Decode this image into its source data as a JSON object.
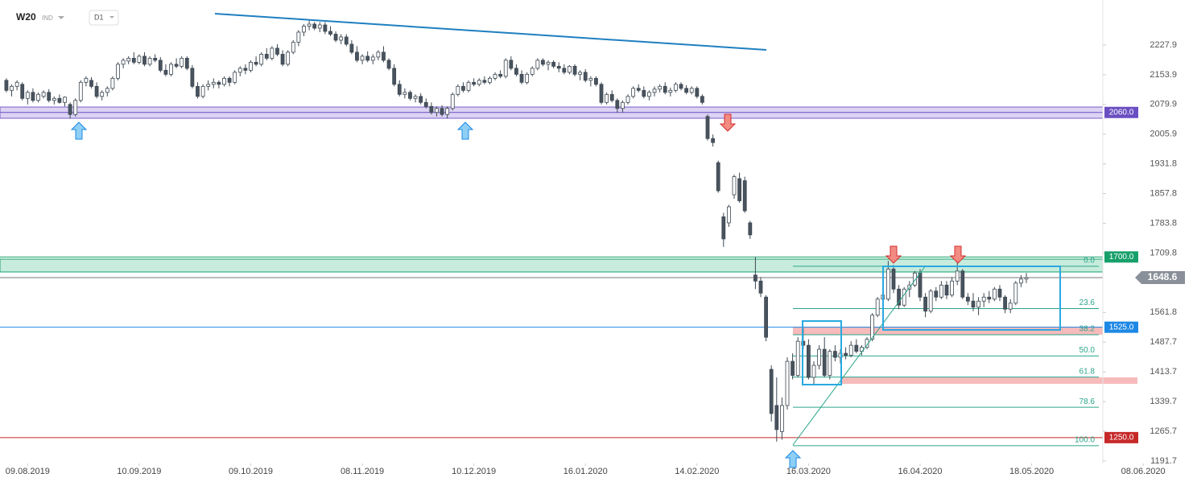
{
  "header": {
    "symbol": "W20",
    "market": "IND",
    "interval": "D1"
  },
  "chart_data": {
    "type": "candlestick",
    "ylim": [
      1185.6,
      2340.1
    ],
    "xlim": [
      -1.2,
      206.4
    ],
    "yticks": [
      2227.9,
      2153.9,
      2079.9,
      2005.9,
      1931.8,
      1857.8,
      1783.8,
      1709.8,
      1561.8,
      1487.7,
      1413.7,
      1339.7,
      1265.7,
      1191.7
    ],
    "xticks": [
      {
        "value": 4,
        "label": "09.08.2019"
      },
      {
        "value": 25,
        "label": "10.09.2019"
      },
      {
        "value": 46,
        "label": "09.10.2019"
      },
      {
        "value": 67,
        "label": "08.11.2019"
      },
      {
        "value": 88,
        "label": "10.12.2019"
      },
      {
        "value": 109,
        "label": "16.01.2020"
      },
      {
        "value": 130,
        "label": "14.02.2020"
      },
      {
        "value": 151,
        "label": "16.03.2020"
      },
      {
        "value": 172,
        "label": "16.04.2020"
      },
      {
        "value": 193,
        "label": "18.05.2020"
      },
      {
        "value": 214,
        "label": "08.06.2020"
      }
    ],
    "last_price": 1648.6,
    "levels": [
      {
        "value": 2060,
        "label": "2060.0",
        "color": "#6a4fc2"
      },
      {
        "value": 1700,
        "label": "1700.0",
        "color": "#17a06a"
      },
      {
        "value": 1525,
        "label": "1525.0",
        "color": "#1e88e5"
      },
      {
        "value": 1250,
        "label": "1250.0",
        "color": "#c62828"
      }
    ],
    "fib": {
      "high": 1677,
      "low": 1230,
      "color": "#2aa58a",
      "levels": [
        {
          "value": 0,
          "label": "0.0"
        },
        23.6,
        38.2,
        {
          "value": 50,
          "label": "50.0"
        },
        61.8,
        78.6,
        {
          "value": 100,
          "label": "100.0"
        }
      ]
    },
    "candles": [
      [
        2140,
        2145,
        2110,
        2115
      ],
      [
        2115,
        2130,
        2100,
        2125
      ],
      [
        2125,
        2140,
        2115,
        2135
      ],
      [
        2130,
        2135,
        2090,
        2095
      ],
      [
        2095,
        2115,
        2080,
        2110
      ],
      [
        2110,
        2120,
        2085,
        2090
      ],
      [
        2090,
        2110,
        2085,
        2105
      ],
      [
        2100,
        2115,
        2095,
        2110
      ],
      [
        2110,
        2118,
        2085,
        2090
      ],
      [
        2090,
        2100,
        2080,
        2095
      ],
      [
        2095,
        2105,
        2082,
        2085
      ],
      [
        2085,
        2100,
        2075,
        2098
      ],
      [
        2080,
        2085,
        2045,
        2055
      ],
      [
        2055,
        2095,
        2050,
        2090
      ],
      [
        2090,
        2140,
        2085,
        2135
      ],
      [
        2135,
        2150,
        2125,
        2145
      ],
      [
        2140,
        2148,
        2120,
        2125
      ],
      [
        2125,
        2135,
        2095,
        2100
      ],
      [
        2100,
        2115,
        2090,
        2110
      ],
      [
        2110,
        2125,
        2100,
        2120
      ],
      [
        2120,
        2150,
        2115,
        2145
      ],
      [
        2145,
        2185,
        2140,
        2180
      ],
      [
        2180,
        2195,
        2170,
        2190
      ],
      [
        2188,
        2200,
        2180,
        2195
      ],
      [
        2195,
        2210,
        2180,
        2185
      ],
      [
        2185,
        2205,
        2180,
        2200
      ],
      [
        2200,
        2210,
        2175,
        2180
      ],
      [
        2180,
        2200,
        2175,
        2195
      ],
      [
        2195,
        2205,
        2185,
        2190
      ],
      [
        2190,
        2198,
        2160,
        2165
      ],
      [
        2165,
        2180,
        2150,
        2155
      ],
      [
        2155,
        2185,
        2150,
        2180
      ],
      [
        2180,
        2195,
        2170,
        2175
      ],
      [
        2175,
        2200,
        2170,
        2195
      ],
      [
        2195,
        2200,
        2165,
        2170
      ],
      [
        2170,
        2178,
        2120,
        2125
      ],
      [
        2125,
        2135,
        2095,
        2100
      ],
      [
        2100,
        2130,
        2095,
        2125
      ],
      [
        2125,
        2140,
        2115,
        2130
      ],
      [
        2130,
        2145,
        2120,
        2135
      ],
      [
        2135,
        2140,
        2120,
        2130
      ],
      [
        2130,
        2150,
        2125,
        2145
      ],
      [
        2145,
        2150,
        2125,
        2135
      ],
      [
        2135,
        2165,
        2130,
        2160
      ],
      [
        2160,
        2175,
        2150,
        2170
      ],
      [
        2170,
        2180,
        2155,
        2165
      ],
      [
        2165,
        2190,
        2160,
        2185
      ],
      [
        2185,
        2200,
        2175,
        2180
      ],
      [
        2180,
        2210,
        2175,
        2205
      ],
      [
        2205,
        2220,
        2190,
        2195
      ],
      [
        2195,
        2225,
        2190,
        2220
      ],
      [
        2220,
        2230,
        2200,
        2205
      ],
      [
        2205,
        2215,
        2175,
        2180
      ],
      [
        2180,
        2215,
        2175,
        2210
      ],
      [
        2210,
        2240,
        2205,
        2235
      ],
      [
        2235,
        2265,
        2225,
        2260
      ],
      [
        2260,
        2280,
        2250,
        2275
      ],
      [
        2275,
        2290,
        2265,
        2280
      ],
      [
        2280,
        2285,
        2265,
        2270
      ],
      [
        2270,
        2285,
        2260,
        2278
      ],
      [
        2278,
        2285,
        2255,
        2262
      ],
      [
        2262,
        2275,
        2250,
        2255
      ],
      [
        2255,
        2262,
        2235,
        2240
      ],
      [
        2240,
        2255,
        2230,
        2248
      ],
      [
        2248,
        2255,
        2225,
        2230
      ],
      [
        2230,
        2240,
        2205,
        2210
      ],
      [
        2210,
        2225,
        2185,
        2190
      ],
      [
        2190,
        2205,
        2180,
        2200
      ],
      [
        2200,
        2212,
        2185,
        2190
      ],
      [
        2190,
        2205,
        2180,
        2198
      ],
      [
        2198,
        2215,
        2190,
        2210
      ],
      [
        2210,
        2225,
        2185,
        2190
      ],
      [
        2190,
        2195,
        2165,
        2170
      ],
      [
        2170,
        2180,
        2125,
        2130
      ],
      [
        2130,
        2140,
        2100,
        2105
      ],
      [
        2105,
        2120,
        2095,
        2110
      ],
      [
        2110,
        2115,
        2090,
        2095
      ],
      [
        2095,
        2105,
        2085,
        2100
      ],
      [
        2100,
        2108,
        2080,
        2085
      ],
      [
        2085,
        2095,
        2070,
        2075
      ],
      [
        2075,
        2085,
        2055,
        2060
      ],
      [
        2060,
        2075,
        2050,
        2070
      ],
      [
        2070,
        2078,
        2050,
        2055
      ],
      [
        2055,
        2075,
        2045,
        2070
      ],
      [
        2070,
        2110,
        2065,
        2105
      ],
      [
        2105,
        2130,
        2100,
        2125
      ],
      [
        2125,
        2135,
        2110,
        2115
      ],
      [
        2115,
        2140,
        2110,
        2135
      ],
      [
        2135,
        2145,
        2125,
        2130
      ],
      [
        2130,
        2145,
        2125,
        2140
      ],
      [
        2140,
        2150,
        2130,
        2135
      ],
      [
        2135,
        2150,
        2130,
        2145
      ],
      [
        2145,
        2160,
        2140,
        2155
      ],
      [
        2155,
        2165,
        2145,
        2150
      ],
      [
        2150,
        2195,
        2145,
        2190
      ],
      [
        2190,
        2200,
        2165,
        2170
      ],
      [
        2170,
        2180,
        2150,
        2155
      ],
      [
        2155,
        2165,
        2130,
        2135
      ],
      [
        2135,
        2160,
        2130,
        2155
      ],
      [
        2155,
        2175,
        2150,
        2170
      ],
      [
        2170,
        2195,
        2165,
        2190
      ],
      [
        2190,
        2195,
        2175,
        2180
      ],
      [
        2180,
        2190,
        2165,
        2185
      ],
      [
        2185,
        2190,
        2170,
        2175
      ],
      [
        2175,
        2185,
        2160,
        2170
      ],
      [
        2170,
        2180,
        2155,
        2160
      ],
      [
        2160,
        2178,
        2155,
        2175
      ],
      [
        2175,
        2180,
        2150,
        2155
      ],
      [
        2155,
        2165,
        2140,
        2160
      ],
      [
        2160,
        2168,
        2135,
        2140
      ],
      [
        2140,
        2150,
        2125,
        2145
      ],
      [
        2145,
        2150,
        2125,
        2130
      ],
      [
        2130,
        2135,
        2080,
        2085
      ],
      [
        2085,
        2110,
        2080,
        2105
      ],
      [
        2105,
        2115,
        2085,
        2090
      ],
      [
        2090,
        2095,
        2060,
        2070
      ],
      [
        2070,
        2090,
        2060,
        2085
      ],
      [
        2085,
        2105,
        2080,
        2100
      ],
      [
        2100,
        2125,
        2095,
        2120
      ],
      [
        2120,
        2130,
        2110,
        2115
      ],
      [
        2115,
        2125,
        2095,
        2100
      ],
      [
        2100,
        2115,
        2090,
        2110
      ],
      [
        2110,
        2125,
        2100,
        2118
      ],
      [
        2118,
        2130,
        2110,
        2125
      ],
      [
        2125,
        2135,
        2105,
        2110
      ],
      [
        2110,
        2122,
        2100,
        2115
      ],
      [
        2115,
        2135,
        2110,
        2130
      ],
      [
        2130,
        2135,
        2115,
        2120
      ],
      [
        2120,
        2128,
        2105,
        2110
      ],
      [
        2110,
        2125,
        2105,
        2120
      ],
      [
        2120,
        2125,
        2095,
        2100
      ],
      [
        2100,
        2105,
        2080,
        2085
      ],
      [
        2050,
        2055,
        1990,
        1995
      ],
      [
        1995,
        2005,
        1975,
        1985
      ],
      [
        1935,
        1940,
        1860,
        1865
      ],
      [
        1800,
        1810,
        1725,
        1745
      ],
      [
        1785,
        1830,
        1775,
        1825
      ],
      [
        1855,
        1905,
        1845,
        1900
      ],
      [
        1895,
        1910,
        1835,
        1840
      ],
      [
        1890,
        1900,
        1810,
        1815
      ],
      [
        1785,
        1790,
        1745,
        1755
      ],
      [
        1655,
        1700,
        1620,
        1640
      ],
      [
        1640,
        1650,
        1600,
        1610
      ],
      [
        1600,
        1605,
        1490,
        1500
      ],
      [
        1420,
        1430,
        1290,
        1310
      ],
      [
        1330,
        1400,
        1240,
        1270
      ],
      [
        1265,
        1350,
        1245,
        1330
      ],
      [
        1330,
        1450,
        1320,
        1440
      ],
      [
        1440,
        1460,
        1395,
        1405
      ],
      [
        1405,
        1500,
        1400,
        1490
      ],
      [
        1490,
        1525,
        1470,
        1480
      ],
      [
        1480,
        1495,
        1395,
        1400
      ],
      [
        1400,
        1440,
        1380,
        1430
      ],
      [
        1430,
        1480,
        1420,
        1470
      ],
      [
        1470,
        1500,
        1400,
        1405
      ],
      [
        1405,
        1470,
        1395,
        1465
      ],
      [
        1465,
        1480,
        1440,
        1450
      ],
      [
        1450,
        1470,
        1435,
        1460
      ],
      [
        1460,
        1475,
        1445,
        1455
      ],
      [
        1455,
        1490,
        1450,
        1480
      ],
      [
        1480,
        1495,
        1460,
        1465
      ],
      [
        1465,
        1480,
        1455,
        1475
      ],
      [
        1475,
        1500,
        1470,
        1495
      ],
      [
        1495,
        1560,
        1490,
        1555
      ],
      [
        1555,
        1600,
        1550,
        1595
      ],
      [
        1595,
        1610,
        1590,
        1605
      ],
      [
        1595,
        1690,
        1590,
        1670
      ],
      [
        1670,
        1680,
        1610,
        1620
      ],
      [
        1620,
        1630,
        1570,
        1580
      ],
      [
        1580,
        1625,
        1575,
        1620
      ],
      [
        1620,
        1640,
        1600,
        1630
      ],
      [
        1630,
        1665,
        1625,
        1660
      ],
      [
        1660,
        1670,
        1590,
        1600
      ],
      [
        1600,
        1610,
        1550,
        1565
      ],
      [
        1565,
        1620,
        1560,
        1615
      ],
      [
        1615,
        1625,
        1590,
        1600
      ],
      [
        1600,
        1640,
        1595,
        1630
      ],
      [
        1630,
        1640,
        1595,
        1605
      ],
      [
        1605,
        1650,
        1600,
        1640
      ],
      [
        1640,
        1700,
        1630,
        1665
      ],
      [
        1665,
        1670,
        1595,
        1600
      ],
      [
        1600,
        1610,
        1580,
        1590
      ],
      [
        1590,
        1610,
        1565,
        1575
      ],
      [
        1575,
        1600,
        1555,
        1590
      ],
      [
        1590,
        1610,
        1575,
        1600
      ],
      [
        1600,
        1615,
        1585,
        1595
      ],
      [
        1595,
        1625,
        1590,
        1620
      ],
      [
        1620,
        1630,
        1590,
        1600
      ],
      [
        1600,
        1605,
        1560,
        1570
      ],
      [
        1570,
        1595,
        1560,
        1585
      ],
      [
        1585,
        1640,
        1580,
        1635
      ],
      [
        1635,
        1655,
        1625,
        1645
      ],
      [
        1645,
        1660,
        1635,
        1648.6
      ]
    ]
  }
}
